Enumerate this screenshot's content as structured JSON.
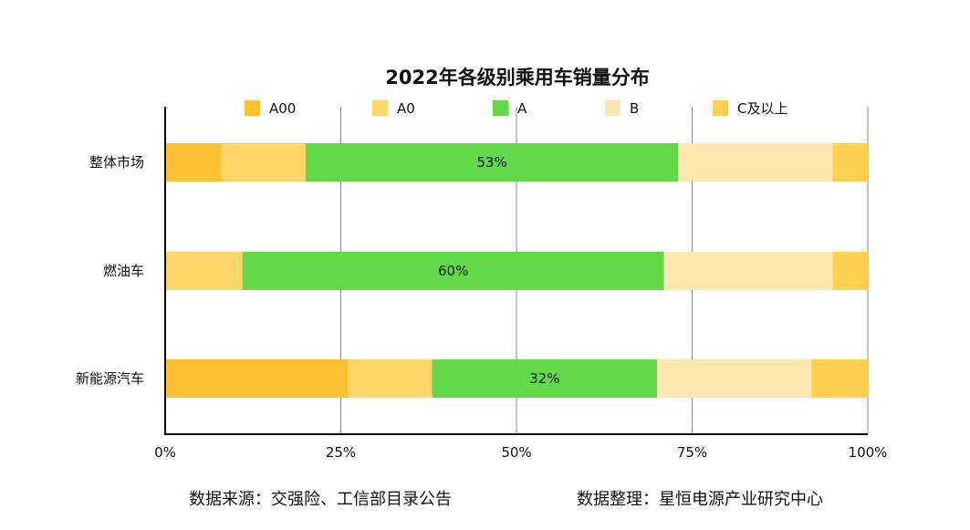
{
  "chart_data": {
    "type": "bar",
    "orientation": "horizontal",
    "stacked": true,
    "title": "2022年各级别乘用车销量分布",
    "categories": [
      "整体市场",
      "燃油车",
      "新能源汽车"
    ],
    "series": [
      {
        "name": "A00",
        "color": "#FFC12F",
        "values": [
          8,
          0,
          26
        ]
      },
      {
        "name": "A0",
        "color": "#FFD56A",
        "values": [
          12,
          11,
          12
        ]
      },
      {
        "name": "A",
        "color": "#63D94A",
        "values": [
          53,
          60,
          32
        ],
        "labels": [
          "53%",
          "60%",
          "32%"
        ]
      },
      {
        "name": "B",
        "color": "#FFE8B0",
        "values": [
          22,
          24,
          22
        ]
      },
      {
        "name": "C及以上",
        "color": "#FFD04D",
        "values": [
          5,
          5,
          8
        ]
      }
    ],
    "xlim": [
      0,
      100
    ],
    "xticks": [
      "0%",
      "25%",
      "50%",
      "75%",
      "100%"
    ],
    "grid": true,
    "legend": "top"
  },
  "footer": {
    "source": "数据来源：交强险、工信部目录公告",
    "compiler": "数据整理：星恒电源产业研究中心"
  }
}
